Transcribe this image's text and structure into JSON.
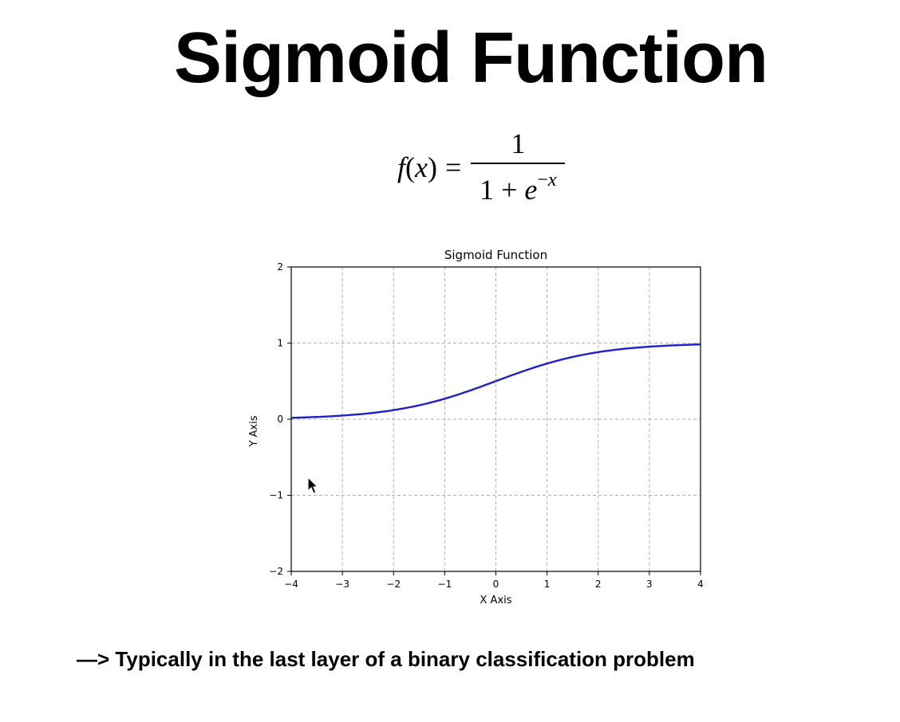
{
  "slide": {
    "title": "Sigmoid Function",
    "footnote": "—> Typically in the last layer of a binary classification problem"
  },
  "formula": {
    "lhs_f": "f",
    "lhs_open": "(",
    "lhs_x": "x",
    "lhs_close": ")",
    "equals": "=",
    "numerator": "1",
    "denominator_base": "1 + ",
    "denominator_e": "e",
    "denominator_exp_minus": "−",
    "denominator_exp_x": "x"
  },
  "colors": {
    "curve": "#1f1fcf",
    "grid": "#b0b0b0",
    "axes": "#000000"
  },
  "icons": {
    "cursor": "mouse-pointer-icon"
  },
  "chart_data": {
    "type": "line",
    "title": "Sigmoid Function",
    "xlabel": "X Axis",
    "ylabel": "Y Axis",
    "xlim": [
      -4,
      4
    ],
    "ylim": [
      -2,
      2
    ],
    "x_ticks": [
      -4,
      -3,
      -2,
      -1,
      0,
      1,
      2,
      3,
      4
    ],
    "y_ticks": [
      -2,
      -1,
      0,
      1,
      2
    ],
    "x_tick_labels": [
      "−4",
      "−3",
      "−2",
      "−1",
      "0",
      "1",
      "2",
      "3",
      "4"
    ],
    "y_tick_labels": [
      "−2",
      "−1",
      "0",
      "1",
      "2"
    ],
    "grid": true,
    "grid_style": "dashed",
    "function": "1 / (1 + exp(-x))",
    "series": [
      {
        "x": [
          -4,
          -3.5,
          -3,
          -2.5,
          -2,
          -1.5,
          -1,
          -0.5,
          0,
          0.5,
          1,
          1.5,
          2,
          2.5,
          3,
          3.5,
          4
        ],
        "y": [
          0.018,
          0.029,
          0.047,
          0.076,
          0.119,
          0.182,
          0.269,
          0.378,
          0.5,
          0.622,
          0.731,
          0.818,
          0.881,
          0.924,
          0.953,
          0.971,
          0.982
        ]
      }
    ]
  }
}
